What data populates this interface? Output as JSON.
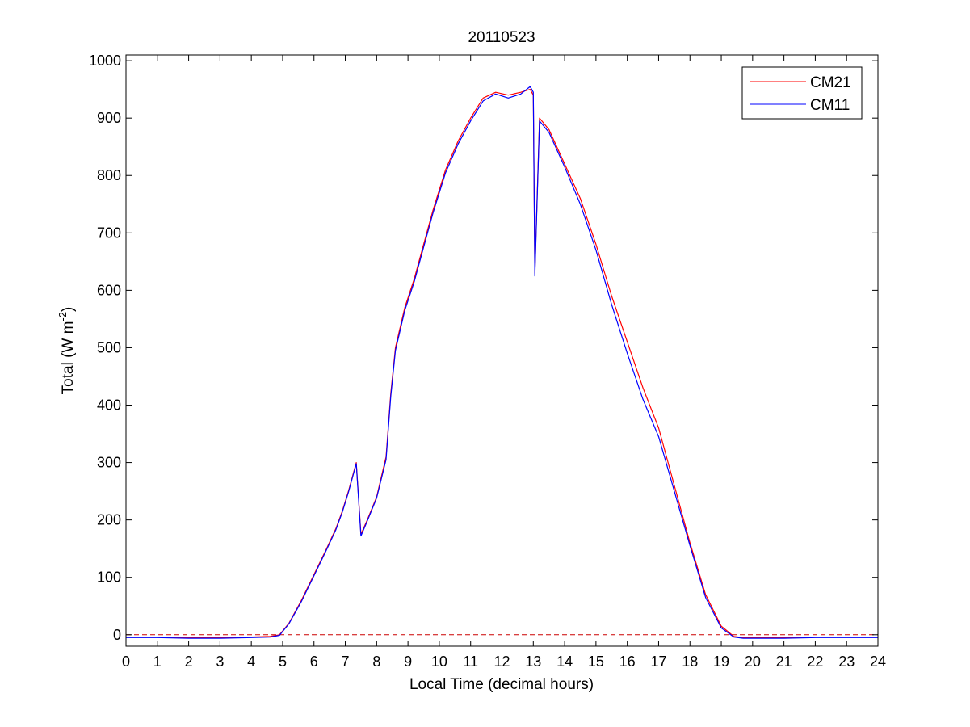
{
  "chart_data": {
    "type": "line",
    "title": "20110523",
    "xlabel": "Local Time (decimal hours)",
    "ylabel": {
      "main": "Total (W m",
      "sup": "-2",
      "end": ")"
    },
    "xlim": [
      0,
      24
    ],
    "ylim": [
      -20,
      1010
    ],
    "xticks": [
      0,
      1,
      2,
      3,
      4,
      5,
      6,
      7,
      8,
      9,
      10,
      11,
      12,
      13,
      14,
      15,
      16,
      17,
      18,
      19,
      20,
      21,
      22,
      23,
      24
    ],
    "yticks": [
      0,
      100,
      200,
      300,
      400,
      500,
      600,
      700,
      800,
      900,
      1000
    ],
    "grid": false,
    "legend_position": "top-right",
    "reference_line": {
      "y": 0,
      "style": "dashed",
      "color": "#cc0000"
    },
    "series": [
      {
        "name": "CM21",
        "color": "#ff0000",
        "x": [
          0,
          1,
          2,
          3,
          4,
          4.6,
          4.9,
          5.2,
          5.6,
          6.0,
          6.4,
          6.7,
          6.9,
          7.1,
          7.35,
          7.5,
          7.7,
          8.0,
          8.3,
          8.45,
          8.6,
          8.9,
          9.2,
          9.5,
          9.8,
          10.2,
          10.6,
          11.0,
          11.4,
          11.8,
          12.2,
          12.6,
          12.9,
          13.0,
          13.05,
          13.2,
          13.5,
          14.0,
          14.5,
          15.0,
          15.5,
          16.0,
          16.5,
          17.0,
          17.5,
          18.0,
          18.5,
          19.0,
          19.4,
          19.7,
          20.0,
          21,
          22,
          23,
          24
        ],
        "y": [
          -4,
          -4,
          -5,
          -5,
          -4,
          -3,
          0,
          20,
          60,
          105,
          150,
          185,
          215,
          250,
          300,
          175,
          200,
          240,
          310,
          420,
          500,
          570,
          620,
          680,
          740,
          810,
          860,
          900,
          935,
          945,
          940,
          945,
          950,
          940,
          630,
          900,
          880,
          820,
          760,
          680,
          590,
          510,
          430,
          360,
          260,
          160,
          70,
          15,
          -3,
          -5,
          -5,
          -5,
          -4,
          -4,
          -4
        ]
      },
      {
        "name": "CM11",
        "color": "#0000ff",
        "x": [
          0,
          1,
          2,
          3,
          4,
          4.6,
          4.9,
          5.2,
          5.6,
          6.0,
          6.4,
          6.7,
          6.9,
          7.1,
          7.35,
          7.5,
          7.7,
          8.0,
          8.3,
          8.45,
          8.6,
          8.9,
          9.2,
          9.5,
          9.8,
          10.2,
          10.6,
          11.0,
          11.4,
          11.8,
          12.2,
          12.6,
          12.9,
          13.0,
          13.05,
          13.2,
          13.5,
          14.0,
          14.5,
          15.0,
          15.5,
          16.0,
          16.5,
          17.0,
          17.5,
          18.0,
          18.5,
          19.0,
          19.4,
          19.7,
          20.0,
          21,
          22,
          23,
          24
        ],
        "y": [
          -5,
          -5,
          -6,
          -6,
          -5,
          -4,
          -1,
          19,
          58,
          103,
          148,
          183,
          213,
          248,
          298,
          172,
          198,
          238,
          305,
          415,
          495,
          565,
          615,
          675,
          735,
          805,
          855,
          895,
          930,
          942,
          935,
          942,
          955,
          945,
          625,
          895,
          875,
          815,
          750,
          670,
          575,
          490,
          410,
          345,
          250,
          155,
          65,
          12,
          -4,
          -6,
          -6,
          -6,
          -5,
          -5,
          -5
        ]
      }
    ]
  }
}
